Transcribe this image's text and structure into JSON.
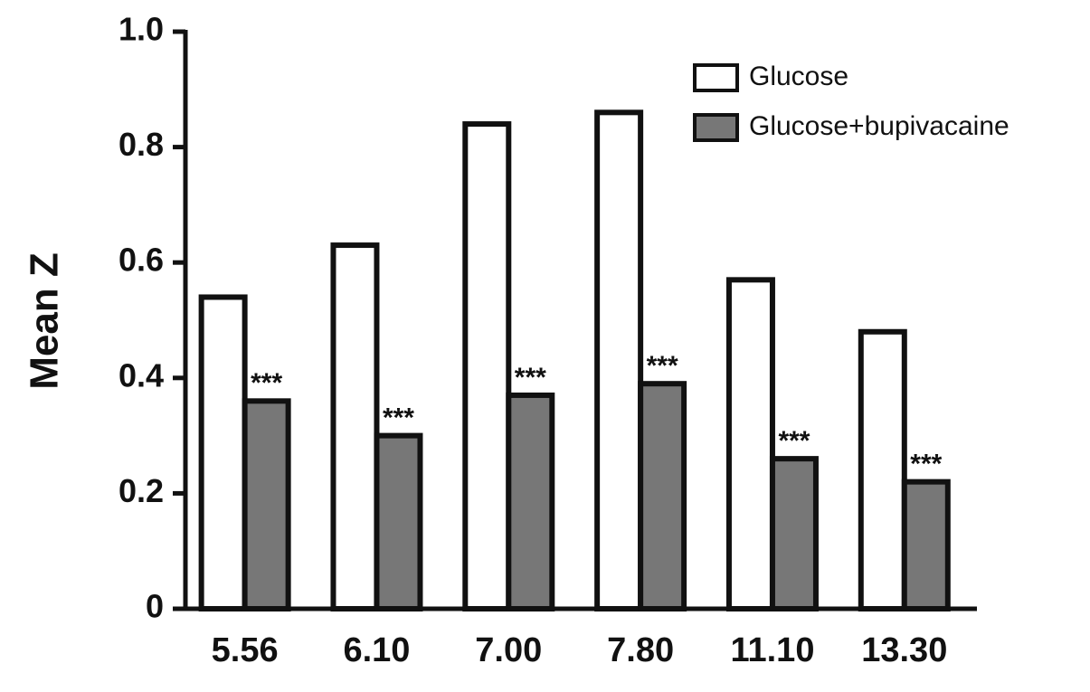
{
  "chart_data": {
    "type": "bar",
    "y_label": "Mean Z",
    "categories": [
      "5.56",
      "6.10",
      "7.00",
      "7.80",
      "11.10",
      "13.30"
    ],
    "series": [
      {
        "name": "Glucose",
        "color": "#ffffff",
        "values": [
          0.54,
          0.63,
          0.84,
          0.86,
          0.57,
          0.48
        ]
      },
      {
        "name": "Glucose+bupivacaine",
        "color": "#777777",
        "values": [
          0.36,
          0.3,
          0.37,
          0.39,
          0.26,
          0.22
        ]
      }
    ],
    "annotations": [
      "***",
      "***",
      "***",
      "***",
      "***",
      "***"
    ],
    "ylim": [
      0,
      1
    ],
    "yticks": [
      0,
      0.2,
      0.4,
      0.6,
      0.8,
      {
        "value": 1,
        "label": "1.0"
      }
    ],
    "grid": false,
    "legend": "top-right"
  }
}
